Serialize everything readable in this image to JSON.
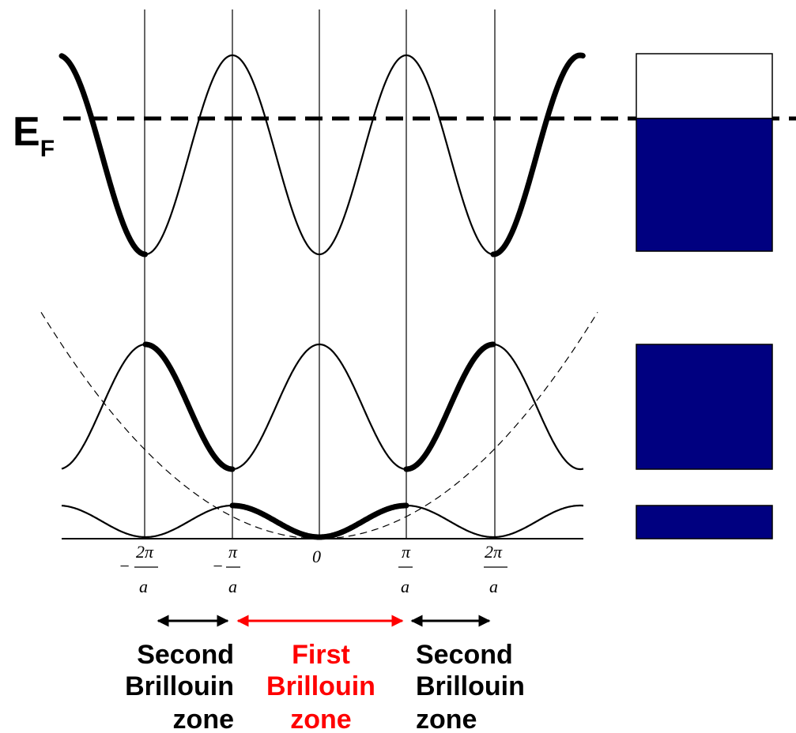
{
  "fermi_label": {
    "main": "E",
    "sub": "F"
  },
  "ticks": [
    {
      "k": -2,
      "numerator": "2π",
      "denominator": "a",
      "sign": "−"
    },
    {
      "k": -1,
      "numerator": "π",
      "denominator": "a",
      "sign": "−"
    },
    {
      "k": 0,
      "numerator": "",
      "denominator": "",
      "sign": "",
      "label": "0"
    },
    {
      "k": 1,
      "numerator": "π",
      "denominator": "a",
      "sign": ""
    },
    {
      "k": 2,
      "numerator": "2π",
      "denominator": "a",
      "sign": ""
    }
  ],
  "zones": [
    {
      "id": "second-left",
      "lines": [
        "Second",
        "Brillouin",
        "zone"
      ],
      "color": "#000000"
    },
    {
      "id": "first",
      "lines": [
        "First",
        "Brillouin",
        "zone"
      ],
      "color": "#ff0000"
    },
    {
      "id": "second-right",
      "lines": [
        "Second",
        "Brillouin",
        "zone"
      ],
      "color": "#000000"
    }
  ],
  "colors": {
    "band_fill": "#000080",
    "axis": "#000000",
    "fermi": "#000000",
    "first_zone": "#ff0000"
  }
}
